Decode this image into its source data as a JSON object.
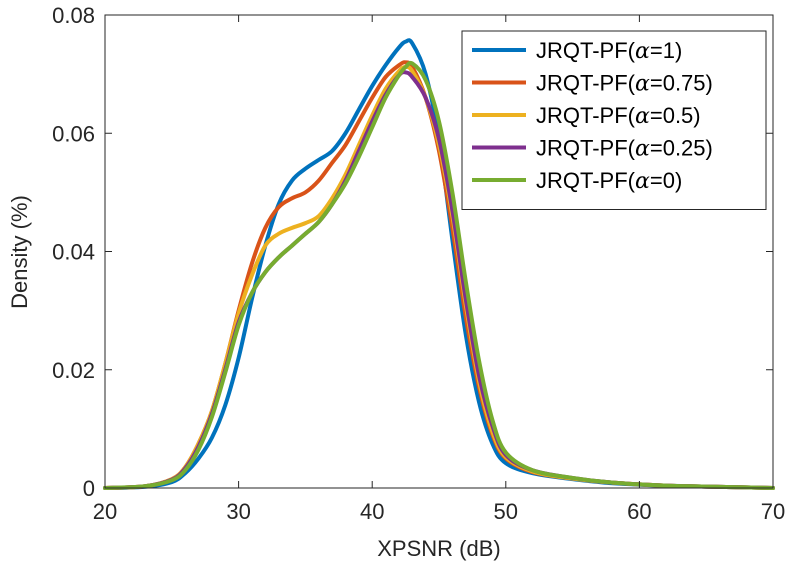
{
  "chart_data": {
    "type": "line",
    "title": "",
    "xlabel": "XPSNR (dB)",
    "ylabel": "Density (%)",
    "xlim": [
      20,
      70
    ],
    "ylim": [
      0,
      0.08
    ],
    "xticks": [
      20,
      30,
      40,
      50,
      60,
      70
    ],
    "yticks": [
      0,
      0.02,
      0.04,
      0.06,
      0.08
    ],
    "xtick_labels": [
      "20",
      "30",
      "40",
      "50",
      "60",
      "70"
    ],
    "ytick_labels": [
      "0",
      "0.02",
      "0.04",
      "0.06",
      "0.08"
    ],
    "grid": false,
    "legend_position": "top-right",
    "series": [
      {
        "name": "JRQT-PF(α=1)",
        "prefix": "JRQT-PF(",
        "alpha_symbol": "α",
        "suffix": "=1)",
        "color": "#0072BD",
        "points": [
          [
            20,
            0
          ],
          [
            23,
            0.0002
          ],
          [
            25,
            0.001
          ],
          [
            26,
            0.0025
          ],
          [
            27,
            0.005
          ],
          [
            28,
            0.0085
          ],
          [
            29,
            0.014
          ],
          [
            30,
            0.022
          ],
          [
            31,
            0.032
          ],
          [
            32,
            0.041
          ],
          [
            33,
            0.048
          ],
          [
            34,
            0.052
          ],
          [
            35,
            0.054
          ],
          [
            36,
            0.0555
          ],
          [
            37,
            0.057
          ],
          [
            38,
            0.06
          ],
          [
            39,
            0.064
          ],
          [
            40,
            0.068
          ],
          [
            41,
            0.0715
          ],
          [
            42,
            0.0745
          ],
          [
            42.5,
            0.0755
          ],
          [
            43,
            0.0752
          ],
          [
            44,
            0.07
          ],
          [
            45,
            0.059
          ],
          [
            46,
            0.042
          ],
          [
            47,
            0.026
          ],
          [
            48,
            0.0145
          ],
          [
            49,
            0.0075
          ],
          [
            50,
            0.0042
          ],
          [
            52,
            0.0025
          ],
          [
            55,
            0.0015
          ],
          [
            58,
            0.0008
          ],
          [
            62,
            0.0004
          ],
          [
            66,
            0.0002
          ],
          [
            70,
            0
          ]
        ]
      },
      {
        "name": "JRQT-PF(α=0.75)",
        "prefix": "JRQT-PF(",
        "alpha_symbol": "α",
        "suffix": "=0.75)",
        "color": "#D95319",
        "points": [
          [
            20,
            0
          ],
          [
            23,
            0.0003
          ],
          [
            25,
            0.0015
          ],
          [
            26,
            0.0035
          ],
          [
            27,
            0.0075
          ],
          [
            28,
            0.013
          ],
          [
            29,
            0.021
          ],
          [
            30,
            0.03
          ],
          [
            31,
            0.038
          ],
          [
            32,
            0.044
          ],
          [
            33,
            0.0475
          ],
          [
            34,
            0.049
          ],
          [
            35,
            0.05
          ],
          [
            36,
            0.052
          ],
          [
            37,
            0.055
          ],
          [
            38,
            0.058
          ],
          [
            39,
            0.062
          ],
          [
            40,
            0.066
          ],
          [
            41,
            0.0695
          ],
          [
            42,
            0.0715
          ],
          [
            42.5,
            0.072
          ],
          [
            43,
            0.0712
          ],
          [
            44,
            0.066
          ],
          [
            45,
            0.057
          ],
          [
            46,
            0.044
          ],
          [
            47,
            0.029
          ],
          [
            48,
            0.017
          ],
          [
            49,
            0.009
          ],
          [
            50,
            0.005
          ],
          [
            52,
            0.0027
          ],
          [
            55,
            0.0016
          ],
          [
            58,
            0.0009
          ],
          [
            62,
            0.0004
          ],
          [
            66,
            0.0002
          ],
          [
            70,
            0
          ]
        ]
      },
      {
        "name": "JRQT-PF(α=0.5)",
        "prefix": "JRQT-PF(",
        "alpha_symbol": "α",
        "suffix": "=0.5)",
        "color": "#EDB120",
        "points": [
          [
            20,
            0
          ],
          [
            23,
            0.0003
          ],
          [
            25,
            0.0015
          ],
          [
            26,
            0.0035
          ],
          [
            27,
            0.0075
          ],
          [
            28,
            0.013
          ],
          [
            29,
            0.021
          ],
          [
            30,
            0.0295
          ],
          [
            31,
            0.036
          ],
          [
            32,
            0.041
          ],
          [
            33,
            0.043
          ],
          [
            34,
            0.044
          ],
          [
            35,
            0.0448
          ],
          [
            36,
            0.046
          ],
          [
            37,
            0.049
          ],
          [
            38,
            0.053
          ],
          [
            39,
            0.058
          ],
          [
            40,
            0.063
          ],
          [
            41,
            0.0675
          ],
          [
            42,
            0.0705
          ],
          [
            42.5,
            0.0712
          ],
          [
            43,
            0.0705
          ],
          [
            44,
            0.066
          ],
          [
            45,
            0.058
          ],
          [
            46,
            0.046
          ],
          [
            47,
            0.031
          ],
          [
            48,
            0.018
          ],
          [
            49,
            0.0095
          ],
          [
            50,
            0.0052
          ],
          [
            52,
            0.0028
          ],
          [
            55,
            0.0016
          ],
          [
            58,
            0.0009
          ],
          [
            62,
            0.0004
          ],
          [
            66,
            0.0002
          ],
          [
            70,
            0
          ]
        ]
      },
      {
        "name": "JRQT-PF(α=0.25)",
        "prefix": "JRQT-PF(",
        "alpha_symbol": "α",
        "suffix": "=0.25)",
        "color": "#7E2F8E",
        "points": [
          [
            20,
            0
          ],
          [
            23,
            0.0003
          ],
          [
            25,
            0.0014
          ],
          [
            26,
            0.0033
          ],
          [
            27,
            0.007
          ],
          [
            28,
            0.0125
          ],
          [
            29,
            0.02
          ],
          [
            30,
            0.028
          ],
          [
            31,
            0.033
          ],
          [
            32,
            0.0365
          ],
          [
            33,
            0.039
          ],
          [
            34,
            0.041
          ],
          [
            35,
            0.043
          ],
          [
            36,
            0.045
          ],
          [
            37,
            0.048
          ],
          [
            38,
            0.052
          ],
          [
            39,
            0.057
          ],
          [
            40,
            0.062
          ],
          [
            41,
            0.0665
          ],
          [
            42,
            0.0698
          ],
          [
            42.5,
            0.0703
          ],
          [
            43,
            0.0695
          ],
          [
            44,
            0.066
          ],
          [
            45,
            0.059
          ],
          [
            46,
            0.047
          ],
          [
            47,
            0.032
          ],
          [
            48,
            0.019
          ],
          [
            49,
            0.0105
          ],
          [
            50,
            0.0056
          ],
          [
            52,
            0.003
          ],
          [
            55,
            0.0017
          ],
          [
            58,
            0.0009
          ],
          [
            62,
            0.0004
          ],
          [
            66,
            0.0002
          ],
          [
            70,
            0
          ]
        ]
      },
      {
        "name": "JRQT-PF(α=0)",
        "prefix": "JRQT-PF(",
        "alpha_symbol": "α",
        "suffix": "=0)",
        "color": "#77AC30",
        "points": [
          [
            20,
            0
          ],
          [
            23,
            0.0003
          ],
          [
            25,
            0.0013
          ],
          [
            26,
            0.003
          ],
          [
            27,
            0.0065
          ],
          [
            28,
            0.012
          ],
          [
            29,
            0.0195
          ],
          [
            30,
            0.0275
          ],
          [
            31,
            0.033
          ],
          [
            32,
            0.0365
          ],
          [
            33,
            0.039
          ],
          [
            34,
            0.041
          ],
          [
            35,
            0.043
          ],
          [
            36,
            0.045
          ],
          [
            37,
            0.048
          ],
          [
            38,
            0.0515
          ],
          [
            39,
            0.056
          ],
          [
            40,
            0.061
          ],
          [
            41,
            0.066
          ],
          [
            42,
            0.0698
          ],
          [
            42.5,
            0.0712
          ],
          [
            43,
            0.0718
          ],
          [
            44,
            0.069
          ],
          [
            45,
            0.062
          ],
          [
            46,
            0.05
          ],
          [
            47,
            0.035
          ],
          [
            48,
            0.0215
          ],
          [
            49,
            0.0115
          ],
          [
            50,
            0.006
          ],
          [
            52,
            0.003
          ],
          [
            55,
            0.0017
          ],
          [
            58,
            0.0009
          ],
          [
            62,
            0.0004
          ],
          [
            66,
            0.0002
          ],
          [
            70,
            0
          ]
        ]
      }
    ]
  }
}
